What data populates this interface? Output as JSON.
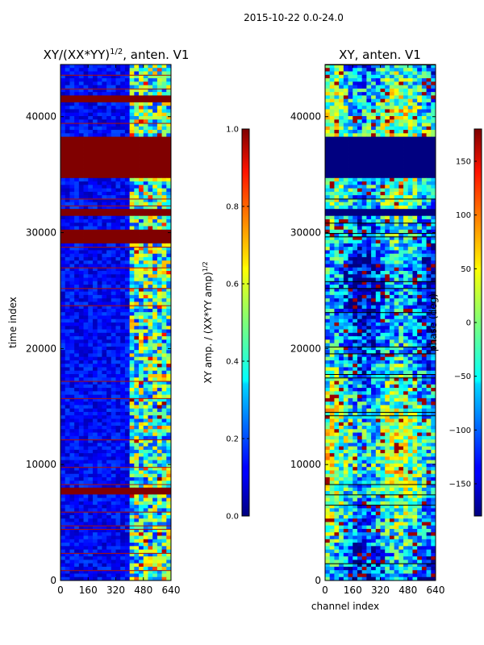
{
  "figure": {
    "suptitle": "2015-10-22 0.0-24.0"
  },
  "chart_data": [
    {
      "type": "heatmap",
      "title": "XY/(XX*YY)^{1/2}, anten. V1",
      "title_main": "XY/(XX*YY)",
      "title_sup": "1/2",
      "title_tail": ", anten. V1",
      "xlabel": "",
      "ylabel": "time index",
      "xlim": [
        0,
        640
      ],
      "ylim": [
        0,
        44500
      ],
      "xticks": [
        0,
        160,
        320,
        480,
        640
      ],
      "yticks": [
        0,
        10000,
        20000,
        30000,
        40000
      ],
      "colormap": "jet",
      "colorbar": {
        "label": "XY amp. / (XX*YY amp)^{1/2}",
        "label_main": "XY amp. / (XX*YY amp)",
        "label_sup": "1/2",
        "range": [
          0.0,
          1.0
        ],
        "ticks": [
          0.0,
          0.2,
          0.4,
          0.6,
          0.8,
          1.0
        ]
      },
      "saturated_bands": [
        [
          7500,
          8000
        ],
        [
          29000,
          30400
        ],
        [
          31500,
          32100
        ],
        [
          34700,
          38300
        ],
        [
          41300,
          41900
        ]
      ],
      "active_channel_range": [
        400,
        640
      ],
      "description_values": "Mostly low (~0.1) normalized amplitude; channels ~400-640 show elevated values; several time ranges saturate at 1.0"
    },
    {
      "type": "heatmap",
      "title": "XY, anten. V1",
      "xlabel": "channel index",
      "ylabel": "",
      "xlim": [
        0,
        640
      ],
      "ylim": [
        0,
        44500
      ],
      "xticks": [
        0,
        160,
        320,
        480,
        640
      ],
      "yticks": [
        0,
        10000,
        20000,
        30000,
        40000
      ],
      "colormap": "jet",
      "colorbar": {
        "label": "phase (deg)",
        "range": [
          -180,
          180
        ],
        "ticks": [
          -150,
          -100,
          -50,
          0,
          50,
          100,
          150
        ]
      },
      "saturated_bands": [
        [
          31500,
          32100
        ],
        [
          34700,
          38300
        ]
      ],
      "description_values": "Phase varies across channels; large time ranges near -180 deg (dark blue)"
    }
  ]
}
